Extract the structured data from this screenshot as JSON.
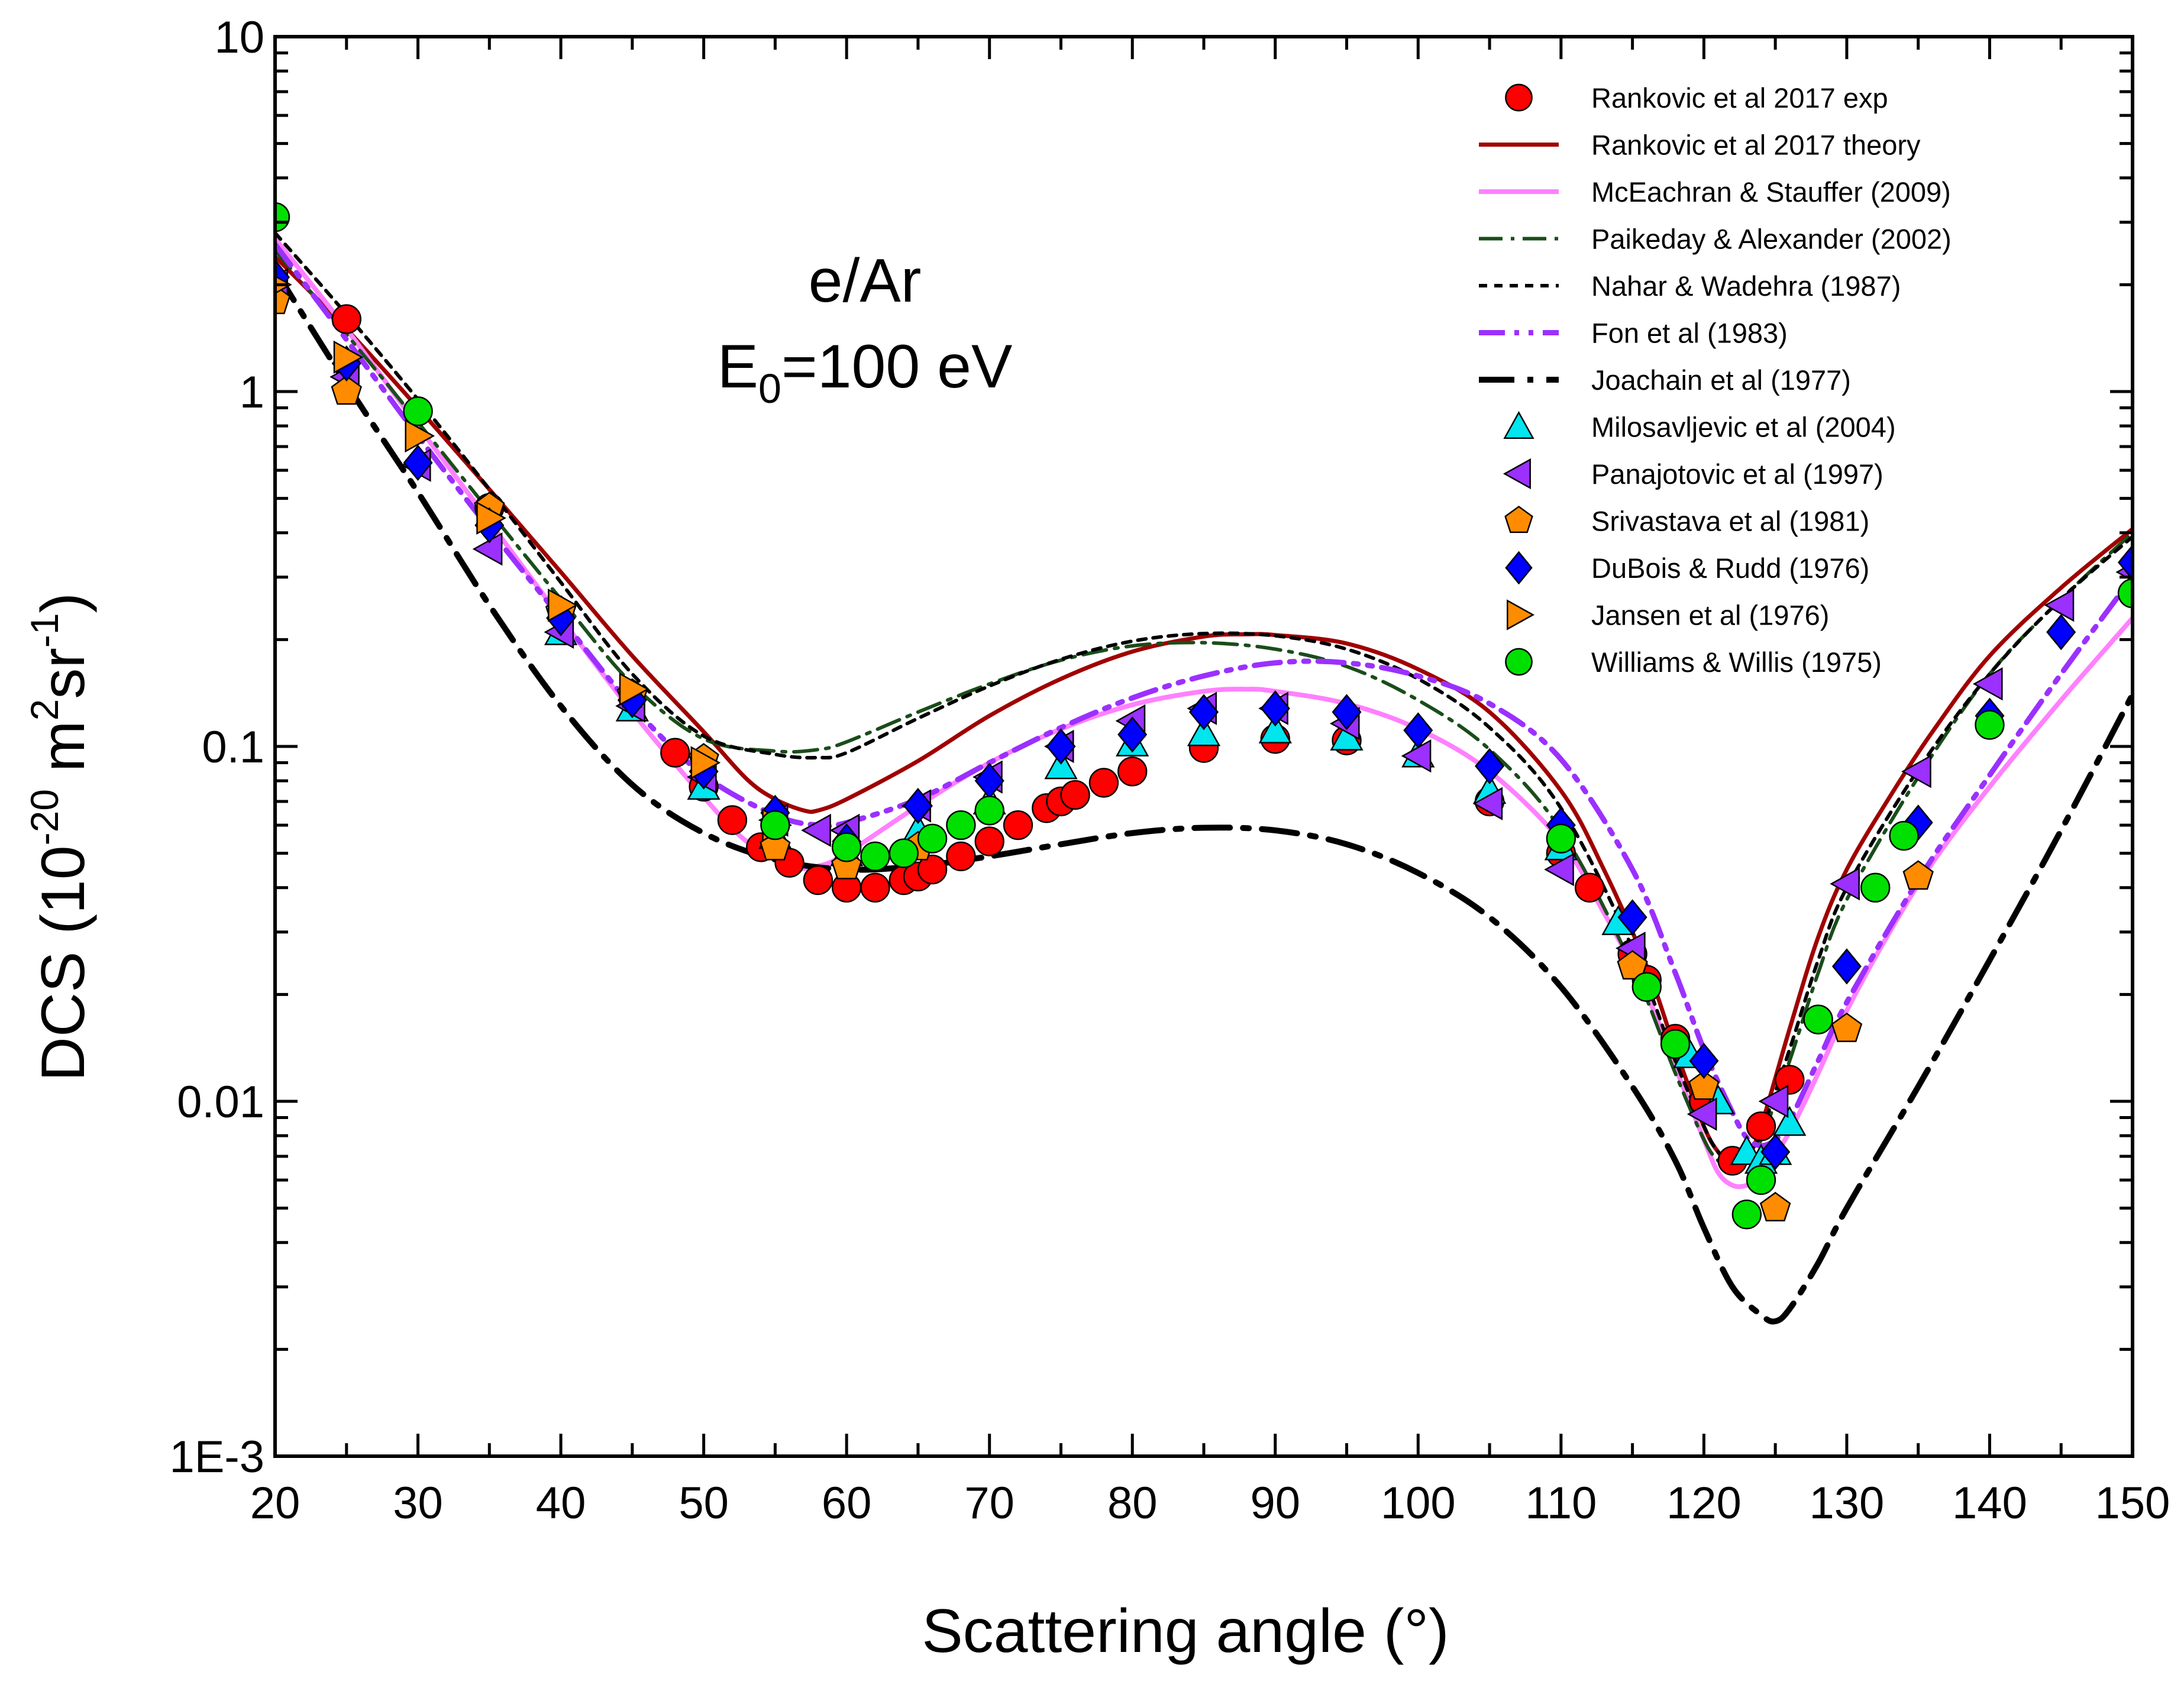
{
  "chart_data": {
    "type": "scatter",
    "annotation": {
      "line1": "e/Ar",
      "line2_main": "E",
      "line2_sub": "0",
      "line2_rest": "=100 eV"
    },
    "xlabel": "Scattering angle (°)",
    "ylabel": {
      "pre": "DCS (10",
      "exp1": "-20",
      "mid": " m",
      "exp2": "2",
      "mid2": "sr",
      "exp3": "-1",
      "post": ")"
    },
    "x_ticks": [
      "20",
      "30",
      "40",
      "50",
      "60",
      "70",
      "80",
      "90",
      "100",
      "110",
      "120",
      "130",
      "140",
      "150"
    ],
    "y_ticks": [
      "1E-3",
      "0.01",
      "0.1",
      "1",
      "10"
    ],
    "xlim": [
      20,
      150
    ],
    "ylim": [
      0.001,
      10
    ],
    "yscale": "log",
    "grid": false,
    "legend_position": "top-right",
    "series": [
      {
        "name": "Rankovic et al 2017 exp",
        "kind": "marker",
        "marker": "circle",
        "color": "#ff0000",
        "x": [
          25,
          35,
          48,
          50,
          52,
          54,
          56,
          58,
          60,
          62,
          64,
          65,
          66,
          68,
          70,
          72,
          74,
          75,
          76,
          78,
          80,
          85,
          90,
          95,
          105,
          110,
          112,
          115,
          116,
          118,
          120,
          122,
          124,
          126
        ],
        "y": [
          1.6,
          0.47,
          0.096,
          0.077,
          0.062,
          0.052,
          0.047,
          0.042,
          0.04,
          0.04,
          0.042,
          0.043,
          0.045,
          0.049,
          0.054,
          0.06,
          0.067,
          0.07,
          0.073,
          0.079,
          0.085,
          0.099,
          0.105,
          0.104,
          0.07,
          0.05,
          0.04,
          0.026,
          0.022,
          0.015,
          0.01,
          0.0068,
          0.0085,
          0.0115
        ]
      },
      {
        "name": "Rankovic et al 2017 theory",
        "kind": "line",
        "style": "solid",
        "color": "#a00000",
        "width": 7,
        "x": [
          20,
          25,
          30,
          35,
          40,
          45,
          50,
          53,
          55,
          57,
          58,
          60,
          65,
          70,
          75,
          80,
          85,
          88,
          90,
          95,
          100,
          105,
          110,
          113,
          116,
          118,
          120,
          121,
          122,
          123,
          124,
          126,
          128,
          130,
          133,
          136,
          140,
          145,
          150
        ],
        "y": [
          2.4,
          1.5,
          0.9,
          0.53,
          0.31,
          0.18,
          0.11,
          0.081,
          0.071,
          0.066,
          0.066,
          0.071,
          0.091,
          0.122,
          0.155,
          0.185,
          0.204,
          0.207,
          0.206,
          0.195,
          0.165,
          0.125,
          0.075,
          0.045,
          0.024,
          0.014,
          0.0085,
          0.0072,
          0.0066,
          0.0069,
          0.0085,
          0.016,
          0.029,
          0.045,
          0.072,
          0.11,
          0.18,
          0.28,
          0.41
        ]
      },
      {
        "name": "McEachran & Stauffer (2009)",
        "kind": "line",
        "style": "solid",
        "color": "#ff80ff",
        "width": 8,
        "x": [
          20,
          25,
          30,
          35,
          40,
          45,
          50,
          53,
          56,
          58,
          60,
          65,
          70,
          75,
          80,
          85,
          88,
          90,
          95,
          100,
          105,
          110,
          113,
          116,
          118,
          120,
          121,
          122,
          123,
          124,
          126,
          128,
          130,
          133,
          136,
          140,
          145,
          150
        ],
        "y": [
          2.7,
          1.5,
          0.8,
          0.43,
          0.23,
          0.125,
          0.072,
          0.054,
          0.046,
          0.046,
          0.05,
          0.068,
          0.09,
          0.112,
          0.131,
          0.143,
          0.145,
          0.143,
          0.132,
          0.112,
          0.085,
          0.054,
          0.034,
          0.02,
          0.0125,
          0.0078,
          0.0063,
          0.0058,
          0.0058,
          0.0062,
          0.0082,
          0.012,
          0.018,
          0.03,
          0.047,
          0.077,
          0.135,
          0.23
        ]
      },
      {
        "name": "Paikeday & Alexander (2002)",
        "kind": "line",
        "style": "dashdot",
        "color": "#1a4d1a",
        "width": 6,
        "x": [
          20,
          25,
          30,
          35,
          40,
          45,
          50,
          55,
          58,
          60,
          65,
          70,
          75,
          80,
          85,
          90,
          95,
          100,
          105,
          110,
          115,
          118,
          120,
          121,
          122,
          123,
          124,
          126,
          128,
          130,
          135,
          140,
          145,
          150
        ],
        "y": [
          2.5,
          1.45,
          0.82,
          0.46,
          0.26,
          0.15,
          0.105,
          0.097,
          0.098,
          0.103,
          0.125,
          0.15,
          0.175,
          0.192,
          0.196,
          0.188,
          0.168,
          0.135,
          0.098,
          0.058,
          0.024,
          0.012,
          0.0078,
          0.0068,
          0.0064,
          0.0067,
          0.0078,
          0.013,
          0.023,
          0.037,
          0.082,
          0.16,
          0.26,
          0.4
        ]
      },
      {
        "name": "Nahar & Wadehra (1987)",
        "kind": "line",
        "style": "dotted",
        "color": "#000000",
        "width": 6,
        "x": [
          20,
          25,
          30,
          35,
          40,
          45,
          50,
          55,
          58,
          60,
          65,
          70,
          75,
          80,
          85,
          90,
          95,
          100,
          105,
          110,
          115,
          118,
          120,
          121,
          122,
          123,
          124,
          126,
          128,
          130,
          135,
          140,
          145,
          150
        ],
        "y": [
          2.8,
          1.65,
          0.95,
          0.53,
          0.29,
          0.16,
          0.107,
          0.095,
          0.093,
          0.096,
          0.12,
          0.148,
          0.176,
          0.198,
          0.208,
          0.205,
          0.188,
          0.155,
          0.113,
          0.067,
          0.027,
          0.013,
          0.0085,
          0.0072,
          0.0068,
          0.007,
          0.0082,
          0.014,
          0.025,
          0.04,
          0.086,
          0.16,
          0.26,
          0.39
        ]
      },
      {
        "name": "Fon et al (1983)",
        "kind": "line",
        "style": "dashdotdot",
        "color": "#9b30ff",
        "width": 9,
        "x": [
          20,
          25,
          30,
          35,
          40,
          45,
          50,
          55,
          58,
          60,
          65,
          70,
          75,
          80,
          85,
          90,
          95,
          100,
          105,
          110,
          115,
          118,
          120,
          122,
          123,
          124,
          125,
          126,
          128,
          130,
          135,
          140,
          145,
          150
        ],
        "y": [
          2.6,
          1.4,
          0.75,
          0.41,
          0.23,
          0.13,
          0.083,
          0.064,
          0.06,
          0.061,
          0.071,
          0.09,
          0.113,
          0.137,
          0.158,
          0.172,
          0.172,
          0.158,
          0.132,
          0.092,
          0.045,
          0.023,
          0.014,
          0.0093,
          0.0079,
          0.0075,
          0.0078,
          0.0088,
          0.013,
          0.019,
          0.042,
          0.083,
          0.16,
          0.3
        ]
      },
      {
        "name": "Joachain et al (1977)",
        "kind": "line",
        "style": "dashdot-thick",
        "color": "#000000",
        "width": 10,
        "x": [
          20,
          25,
          30,
          35,
          40,
          45,
          50,
          55,
          60,
          65,
          70,
          75,
          80,
          85,
          90,
          95,
          100,
          105,
          110,
          115,
          118,
          120,
          122,
          124,
          125,
          126,
          128,
          130,
          135,
          140,
          145,
          150
        ],
        "y": [
          2.2,
          1.05,
          0.52,
          0.25,
          0.13,
          0.078,
          0.057,
          0.048,
          0.045,
          0.046,
          0.049,
          0.053,
          0.057,
          0.059,
          0.058,
          0.053,
          0.044,
          0.033,
          0.021,
          0.011,
          0.0068,
          0.0044,
          0.003,
          0.0025,
          0.0024,
          0.0026,
          0.0035,
          0.005,
          0.011,
          0.025,
          0.058,
          0.14
        ]
      },
      {
        "name": "Milosavljevic et al (2004)",
        "kind": "marker",
        "marker": "triangle-up",
        "color": "#00e5ee",
        "x": [
          40,
          45,
          50,
          55,
          60,
          65,
          70,
          75,
          80,
          85,
          90,
          95,
          100,
          105,
          110,
          114,
          119,
          121,
          123,
          124,
          125,
          126
        ],
        "y": [
          0.21,
          0.128,
          0.077,
          0.056,
          0.05,
          0.058,
          0.07,
          0.088,
          0.102,
          0.109,
          0.111,
          0.106,
          0.095,
          0.075,
          0.052,
          0.032,
          0.0135,
          0.01,
          0.0072,
          0.0068,
          0.0072,
          0.0087
        ]
      },
      {
        "name": "Panajotovic et al (1997)",
        "kind": "marker",
        "marker": "triangle-left",
        "color": "#9b30ff",
        "x": [
          20,
          25,
          30,
          35,
          40,
          45,
          50,
          55,
          58,
          60,
          65,
          70,
          75,
          80,
          85,
          90,
          95,
          100,
          105,
          110,
          115,
          120,
          125,
          130,
          135,
          140,
          145,
          150
        ],
        "y": [
          2.0,
          1.1,
          0.62,
          0.36,
          0.21,
          0.13,
          0.082,
          0.062,
          0.058,
          0.058,
          0.068,
          0.082,
          0.1,
          0.118,
          0.128,
          0.128,
          0.116,
          0.094,
          0.069,
          0.045,
          0.027,
          0.0092,
          0.01,
          0.041,
          0.085,
          0.15,
          0.25,
          0.31
        ]
      },
      {
        "name": "Srivastava et al (1981)",
        "kind": "marker",
        "marker": "pentagon",
        "color": "#ff8c00",
        "x": [
          20,
          25,
          35,
          40,
          45,
          50,
          55,
          60,
          65,
          115,
          120,
          125,
          130,
          135
        ],
        "y": [
          1.8,
          1.0,
          0.47,
          0.24,
          0.14,
          0.092,
          0.052,
          0.046,
          0.052,
          0.024,
          0.011,
          0.005,
          0.016,
          0.043
        ]
      },
      {
        "name": "DuBois & Rudd (1976)",
        "kind": "marker",
        "marker": "diamond",
        "color": "#0000ff",
        "x": [
          20,
          25,
          30,
          35,
          40,
          45,
          50,
          55,
          60,
          65,
          70,
          75,
          80,
          85,
          90,
          95,
          100,
          105,
          110,
          115,
          120,
          125,
          130,
          135,
          140,
          145,
          150
        ],
        "y": [
          2.1,
          1.2,
          0.63,
          0.42,
          0.23,
          0.135,
          0.085,
          0.065,
          0.054,
          0.068,
          0.08,
          0.1,
          0.108,
          0.125,
          0.128,
          0.125,
          0.111,
          0.088,
          0.06,
          0.033,
          0.013,
          0.0072,
          0.024,
          0.061,
          0.122,
          0.21,
          0.33
        ]
      },
      {
        "name": "Jansen et al (1976)",
        "kind": "marker",
        "marker": "triangle-right",
        "color": "#ff8c00",
        "x": [
          20,
          25,
          30,
          35,
          40,
          45,
          50,
          55
        ],
        "y": [
          2.0,
          1.25,
          0.75,
          0.44,
          0.25,
          0.145,
          0.09,
          0.06
        ]
      },
      {
        "name": "Williams & Willis (1975)",
        "kind": "marker",
        "marker": "circle",
        "color": "#00e000",
        "x": [
          20,
          30,
          55,
          60,
          62,
          64,
          66,
          68,
          70,
          110,
          116,
          118,
          123,
          124,
          128,
          132,
          134,
          140,
          150
        ],
        "y": [
          3.1,
          0.88,
          0.06,
          0.052,
          0.049,
          0.05,
          0.055,
          0.06,
          0.066,
          0.055,
          0.021,
          0.0145,
          0.0048,
          0.006,
          0.017,
          0.04,
          0.056,
          0.115,
          0.27
        ]
      }
    ]
  }
}
